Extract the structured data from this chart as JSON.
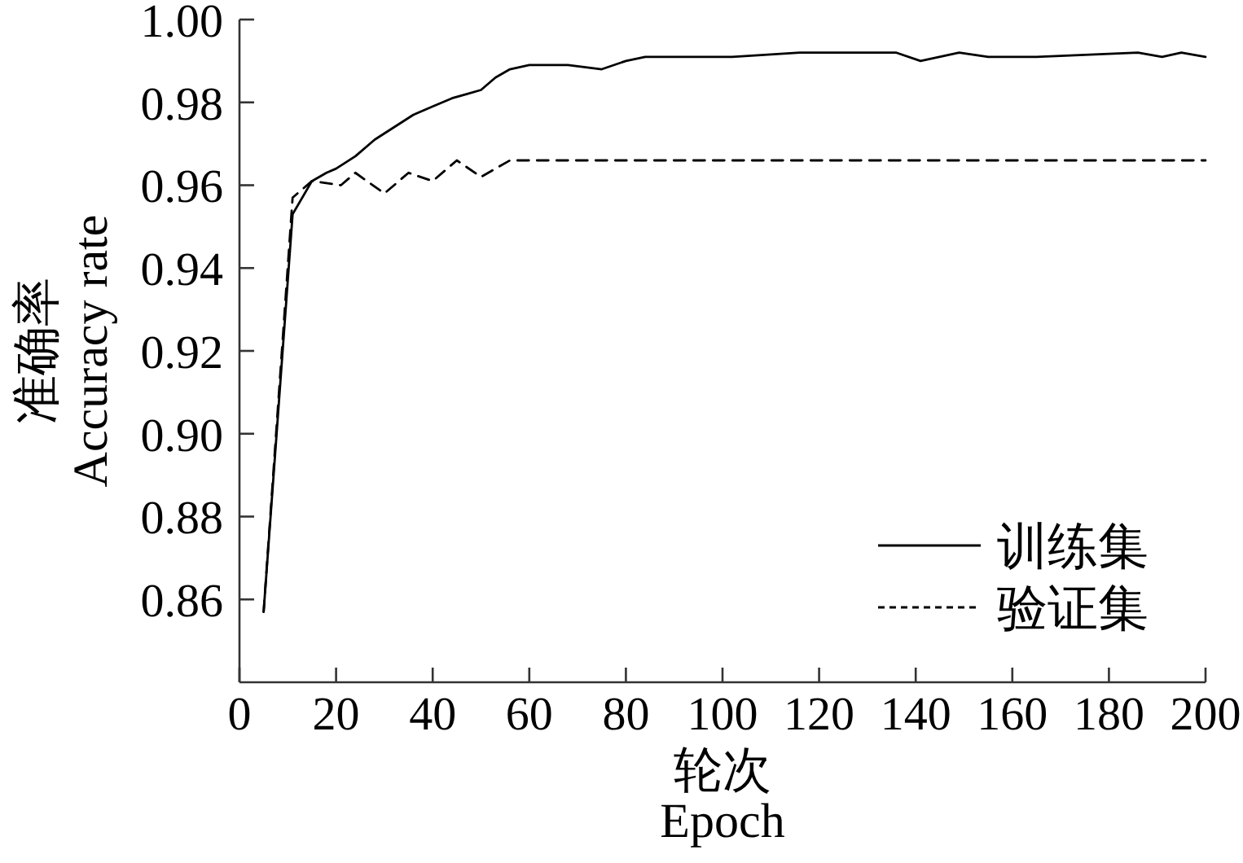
{
  "chart_data": {
    "type": "line",
    "xlabel": "轮次\nEpoch",
    "ylabel": "准确率\nAccuracy rate",
    "xlim": [
      0,
      200
    ],
    "xticks": [
      0,
      20,
      40,
      60,
      80,
      100,
      120,
      140,
      160,
      180,
      200
    ],
    "ylim": [
      0.84,
      1.0
    ],
    "yticks": [
      0.86,
      0.88,
      {
        "value": 0.9,
        "label": "0.90"
      },
      0.92,
      0.94,
      0.96,
      0.98,
      {
        "value": 1,
        "label": "1.00"
      }
    ],
    "legend": "bottom right",
    "series": [
      {
        "name": "训练集",
        "color": "#000000",
        "line_style": "solid",
        "x": [
          5,
          11,
          15,
          18,
          20,
          24,
          28,
          32,
          36,
          40,
          44,
          47,
          50,
          53,
          56,
          60,
          63,
          68,
          75,
          80,
          84,
          102,
          116,
          136,
          141,
          149,
          155,
          165,
          186,
          191,
          195,
          200
        ],
        "values": [
          0.857,
          0.953,
          0.961,
          0.963,
          0.964,
          0.967,
          0.971,
          0.974,
          0.977,
          0.979,
          0.981,
          0.982,
          0.983,
          0.986,
          0.988,
          0.989,
          0.989,
          0.989,
          0.988,
          0.99,
          0.991,
          0.991,
          0.992,
          0.992,
          0.99,
          0.992,
          0.991,
          0.991,
          0.992,
          0.991,
          0.992,
          0.991
        ]
      },
      {
        "name": "验证集",
        "color": "#000000",
        "line_style": "dashed",
        "x": [
          5,
          11,
          15,
          21,
          24,
          30,
          35,
          40,
          45,
          50,
          56,
          80,
          200
        ],
        "values": [
          0.857,
          0.957,
          0.961,
          0.96,
          0.963,
          0.958,
          0.963,
          0.961,
          0.966,
          0.962,
          0.966,
          0.966,
          0.966
        ]
      }
    ]
  }
}
